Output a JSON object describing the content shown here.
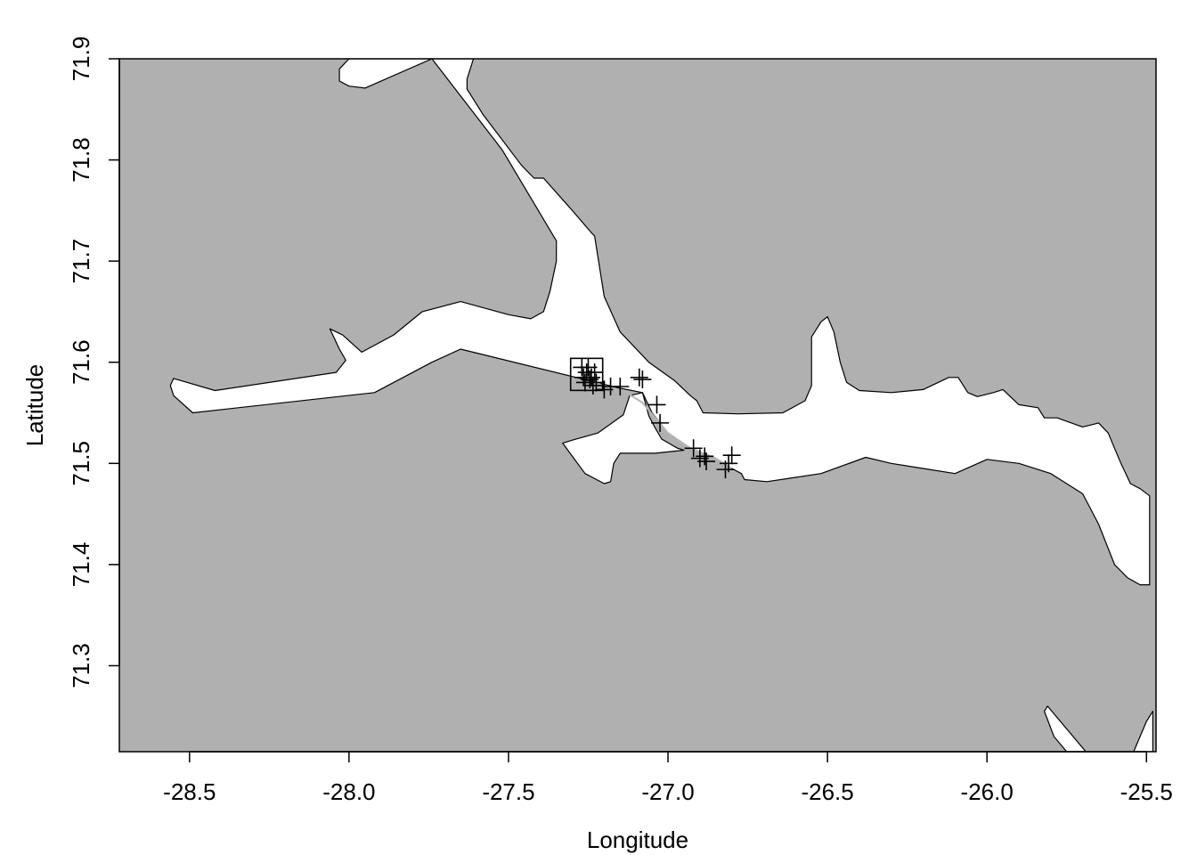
{
  "chart_data": {
    "type": "scatter",
    "title": "",
    "xlabel": "Longitude",
    "ylabel": "Latitude",
    "xlim": [
      -28.72,
      -25.47
    ],
    "ylim": [
      71.215,
      71.9
    ],
    "xticks": [
      -28.5,
      -28.0,
      -27.5,
      -27.0,
      -26.5,
      -26.0,
      -25.5
    ],
    "xtick_labels": [
      "-28.5",
      "-28.0",
      "-27.5",
      "-27.0",
      "-26.5",
      "-26.0",
      "-25.5"
    ],
    "yticks": [
      71.3,
      71.4,
      71.5,
      71.6,
      71.7,
      71.8,
      71.9
    ],
    "ytick_labels": [
      "71.3",
      "71.4",
      "71.5",
      "71.6",
      "71.7",
      "71.8",
      "71.9"
    ],
    "grid": false,
    "colors": {
      "land": "#b0b0b0",
      "water": "#ffffff",
      "track": "#b5b5b5",
      "marker": "#000000"
    },
    "start_square": {
      "x": -27.255,
      "y": 71.588
    },
    "track": [
      [
        -27.255,
        71.588
      ],
      [
        -27.2,
        71.575
      ],
      [
        -27.13,
        71.57
      ],
      [
        -27.08,
        71.56
      ],
      [
        -27.0,
        71.53
      ],
      [
        -26.93,
        71.515
      ],
      [
        -26.85,
        71.505
      ],
      [
        -26.8,
        71.495
      ]
    ],
    "points": [
      [
        -27.27,
        71.595
      ],
      [
        -27.255,
        71.59
      ],
      [
        -27.265,
        71.585
      ],
      [
        -27.26,
        71.58
      ],
      [
        -27.245,
        71.583
      ],
      [
        -27.25,
        71.595
      ],
      [
        -27.24,
        71.585
      ],
      [
        -27.23,
        71.59
      ],
      [
        -27.225,
        71.58
      ],
      [
        -27.235,
        71.577
      ],
      [
        -27.2,
        71.573
      ],
      [
        -27.18,
        71.576
      ],
      [
        -27.15,
        71.576
      ],
      [
        -27.09,
        71.585
      ],
      [
        -27.08,
        71.583
      ],
      [
        -27.035,
        71.558
      ],
      [
        -27.025,
        71.54
      ],
      [
        -26.92,
        71.515
      ],
      [
        -26.9,
        71.505
      ],
      [
        -26.885,
        71.507
      ],
      [
        -26.88,
        71.502
      ],
      [
        -26.8,
        71.508
      ],
      [
        -26.81,
        71.5
      ],
      [
        -26.82,
        71.494
      ]
    ],
    "water_polygons": [
      [
        [
          -27.08,
          71.57
        ],
        [
          -27.16,
          71.575
        ],
        [
          -27.65,
          71.613
        ],
        [
          -27.74,
          71.6
        ],
        [
          -27.92,
          71.57
        ],
        [
          -28.49,
          71.55
        ],
        [
          -28.55,
          71.567
        ],
        [
          -28.56,
          71.577
        ],
        [
          -28.55,
          71.584
        ],
        [
          -28.42,
          71.572
        ],
        [
          -28.04,
          71.59
        ],
        [
          -28.01,
          71.602
        ],
        [
          -28.03,
          71.613
        ],
        [
          -28.06,
          71.633
        ],
        [
          -28.02,
          71.627
        ],
        [
          -27.96,
          71.61
        ],
        [
          -27.86,
          71.627
        ],
        [
          -27.77,
          71.65
        ],
        [
          -27.65,
          71.66
        ],
        [
          -27.5,
          71.647
        ],
        [
          -27.43,
          71.643
        ],
        [
          -27.39,
          71.65
        ],
        [
          -27.37,
          71.67
        ],
        [
          -27.35,
          71.7
        ],
        [
          -27.35,
          71.72
        ],
        [
          -27.52,
          71.81
        ],
        [
          -27.74,
          71.9
        ],
        [
          -27.95,
          71.871
        ],
        [
          -28.0,
          71.873
        ],
        [
          -28.03,
          71.878
        ],
        [
          -28.03,
          71.89
        ],
        [
          -28.0,
          71.9
        ],
        [
          -27.71,
          71.9
        ],
        [
          -27.63,
          71.9
        ],
        [
          -27.61,
          71.9
        ],
        [
          -27.63,
          71.88
        ],
        [
          -27.63,
          71.87
        ],
        [
          -27.58,
          71.845
        ],
        [
          -27.46,
          71.795
        ],
        [
          -27.42,
          71.782
        ],
        [
          -27.39,
          71.782
        ],
        [
          -27.3,
          71.75
        ],
        [
          -27.24,
          71.728
        ],
        [
          -27.23,
          71.725
        ],
        [
          -27.2,
          71.665
        ],
        [
          -27.15,
          71.63
        ],
        [
          -27.06,
          71.6
        ],
        [
          -26.98,
          71.582
        ],
        [
          -26.93,
          71.567
        ],
        [
          -26.91,
          71.562
        ],
        [
          -26.89,
          71.55
        ],
        [
          -26.78,
          71.549
        ],
        [
          -26.64,
          71.55
        ],
        [
          -26.57,
          71.562
        ],
        [
          -26.55,
          71.577
        ],
        [
          -26.55,
          71.625
        ],
        [
          -26.52,
          71.64
        ],
        [
          -26.5,
          71.645
        ],
        [
          -26.48,
          71.63
        ],
        [
          -26.46,
          71.6
        ],
        [
          -26.44,
          71.58
        ],
        [
          -26.4,
          71.572
        ],
        [
          -26.3,
          71.57
        ],
        [
          -26.2,
          71.573
        ],
        [
          -26.12,
          71.585
        ],
        [
          -26.09,
          71.585
        ],
        [
          -26.06,
          71.57
        ],
        [
          -26.03,
          71.566
        ],
        [
          -25.98,
          71.57
        ],
        [
          -25.95,
          71.573
        ],
        [
          -25.9,
          71.558
        ],
        [
          -25.84,
          71.555
        ],
        [
          -25.82,
          71.545
        ],
        [
          -25.78,
          71.545
        ],
        [
          -25.7,
          71.536
        ],
        [
          -25.65,
          71.54
        ],
        [
          -25.62,
          71.53
        ],
        [
          -25.6,
          71.515
        ],
        [
          -25.58,
          71.5
        ],
        [
          -25.55,
          71.48
        ],
        [
          -25.52,
          71.475
        ],
        [
          -25.49,
          71.468
        ],
        [
          -25.49,
          71.38
        ],
        [
          -25.52,
          71.38
        ],
        [
          -25.56,
          71.387
        ],
        [
          -25.6,
          71.4
        ],
        [
          -25.65,
          71.44
        ],
        [
          -25.7,
          71.47
        ],
        [
          -25.8,
          71.49
        ],
        [
          -25.9,
          71.5
        ],
        [
          -26.0,
          71.504
        ],
        [
          -26.1,
          71.49
        ],
        [
          -26.2,
          71.495
        ],
        [
          -26.3,
          71.5
        ],
        [
          -26.38,
          71.506
        ],
        [
          -26.52,
          71.49
        ],
        [
          -26.69,
          71.482
        ],
        [
          -26.76,
          71.484
        ],
        [
          -26.77,
          71.49
        ],
        [
          -26.8,
          71.495
        ],
        [
          -26.85,
          71.505
        ],
        [
          -26.93,
          71.515
        ],
        [
          -27.0,
          71.53
        ],
        [
          -27.05,
          71.55
        ]
      ],
      [
        [
          -27.3,
          71.523
        ],
        [
          -27.22,
          71.53
        ],
        [
          -27.14,
          71.548
        ],
        [
          -27.12,
          71.567
        ],
        [
          -27.08,
          71.57
        ],
        [
          -27.06,
          71.547
        ],
        [
          -27.04,
          71.535
        ],
        [
          -27.02,
          71.524
        ],
        [
          -26.97,
          71.515
        ],
        [
          -26.95,
          71.513
        ],
        [
          -27.04,
          71.51
        ],
        [
          -27.15,
          71.51
        ],
        [
          -27.17,
          71.5
        ],
        [
          -27.18,
          71.482
        ],
        [
          -27.2,
          71.48
        ],
        [
          -27.26,
          71.49
        ],
        [
          -27.33,
          71.52
        ]
      ],
      [
        [
          -25.69,
          71.215
        ],
        [
          -25.81,
          71.26
        ],
        [
          -25.82,
          71.255
        ],
        [
          -25.79,
          71.23
        ],
        [
          -25.75,
          71.215
        ]
      ],
      [
        [
          -25.54,
          71.215
        ],
        [
          -25.5,
          71.245
        ],
        [
          -25.48,
          71.255
        ],
        [
          -25.48,
          71.215
        ]
      ]
    ]
  }
}
